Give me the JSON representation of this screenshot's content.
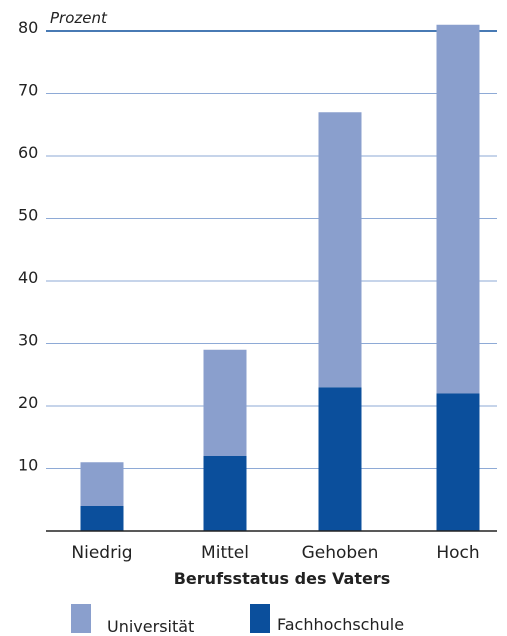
{
  "chart_data": {
    "type": "bar",
    "stacked": true,
    "categories": [
      "Niedrig",
      "Mittel",
      "Gehoben",
      "Hoch"
    ],
    "series": [
      {
        "name": "Fachhochschule",
        "values": [
          4,
          12,
          23,
          22
        ]
      },
      {
        "name": "Universität",
        "values": [
          7,
          17,
          44,
          59
        ]
      }
    ],
    "ylabel": "Prozent",
    "xlabel": "Berufsstatus des Vaters",
    "ylim": [
      0,
      80
    ],
    "yticks": [
      10,
      20,
      30,
      40,
      50,
      60,
      70,
      80
    ],
    "grid": true,
    "legend_position": "bottom",
    "colors": {
      "Universität": "#8a9fcd",
      "Fachhochschule": "#0b4f9c",
      "grid": "#8eaad6",
      "grid_top": "#0b4f9c",
      "axis": "#222222"
    }
  }
}
